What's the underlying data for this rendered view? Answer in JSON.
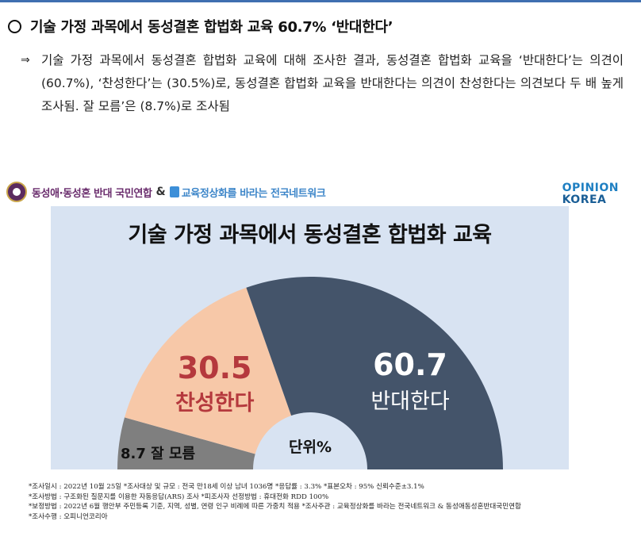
{
  "heading": {
    "text": "기술 가정 과목에서 동성결혼 합법화 교육 60.7% ‘반대한다’"
  },
  "summary": {
    "arrow": "⇒",
    "text": "기술 가정 과목에서 동성결혼 합법화 교육에 대해 조사한 결과, 동성결혼 합법화 교육을 ‘반대한다’는 의견이 (60.7%), ‘찬성한다’는 (30.5%)로, 동성결혼 합법화 교육을 반대한다는 의견이 찬성한다는 의견보다 두 배 높게 조사됨. 잘 모름’은 (8.7%)로 조사됨"
  },
  "infographic": {
    "sponsor1": "동성애·동성혼 반대 국민연합",
    "ampersand": "&",
    "sponsor2": "교육정상화를 바라는 전국네트워크",
    "logo_line1": "OPINION",
    "logo_line2": "KOREA"
  },
  "chart_data": {
    "type": "pie",
    "style": "half-donut",
    "title": "기술 가정 과목에서 동성결혼 합법화 교육",
    "unit_label": "단위%",
    "segments": [
      {
        "label": "잘 모름",
        "value": 8.7,
        "value_text": "8.7",
        "color": "#7f7f7f"
      },
      {
        "label": "찬성한다",
        "value": 30.5,
        "value_text": "30.5",
        "color": "#f7c8a8"
      },
      {
        "label": "반대한다",
        "value": 60.7,
        "value_text": "60.7",
        "color": "#44546a"
      }
    ],
    "label_colors": {
      "잘 모름": "#111111",
      "찬성한다": "#b5393d",
      "반대한다": "#ffffff"
    },
    "background": "#d8e3f2"
  },
  "footnotes": [
    "*조사일시 : 2022년 10월 25일   *조사대상 및 규모 : 전국 만18세 이상 남녀 1036명  *응답률 : 3.3%    *표본오차 : 95% 신뢰수준±3.1%",
    "*조사방법 : 구조화된 질문지를 이용한 자동응답(ARS) 조사  *피조사자 선정방법 : 휴대전화 RDD 100%",
    "*보정방법 : 2022년 6월 행안부 주민등록 기준, 지역, 성별, 연령 인구 비례에 따른 가중치 적용   *조사주관 : 교육정상화를 바라는 전국네트워크 & 동성애동성혼반대국민연합",
    "*조사수행 : 오피니언코리아"
  ]
}
